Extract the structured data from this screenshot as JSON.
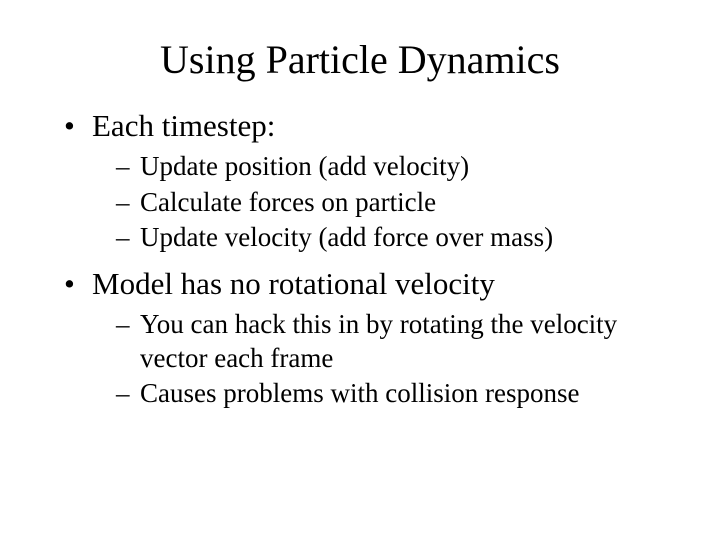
{
  "title": "Using Particle Dynamics",
  "bullets": [
    {
      "text": "Each timestep:",
      "children": [
        "Update position (add velocity)",
        "Calculate forces on particle",
        "Update velocity (add force over mass)"
      ]
    },
    {
      "text": "Model has no rotational velocity",
      "children": [
        "You can hack this in by rotating the velocity vector each frame",
        "Causes problems with collision response"
      ]
    }
  ],
  "style": {
    "background_color": "#ffffff",
    "text_color": "#000000",
    "font_family": "Times New Roman",
    "title_fontsize": 40,
    "level1_fontsize": 31,
    "level2_fontsize": 27,
    "level1_marker": "•",
    "level2_marker": "–"
  }
}
